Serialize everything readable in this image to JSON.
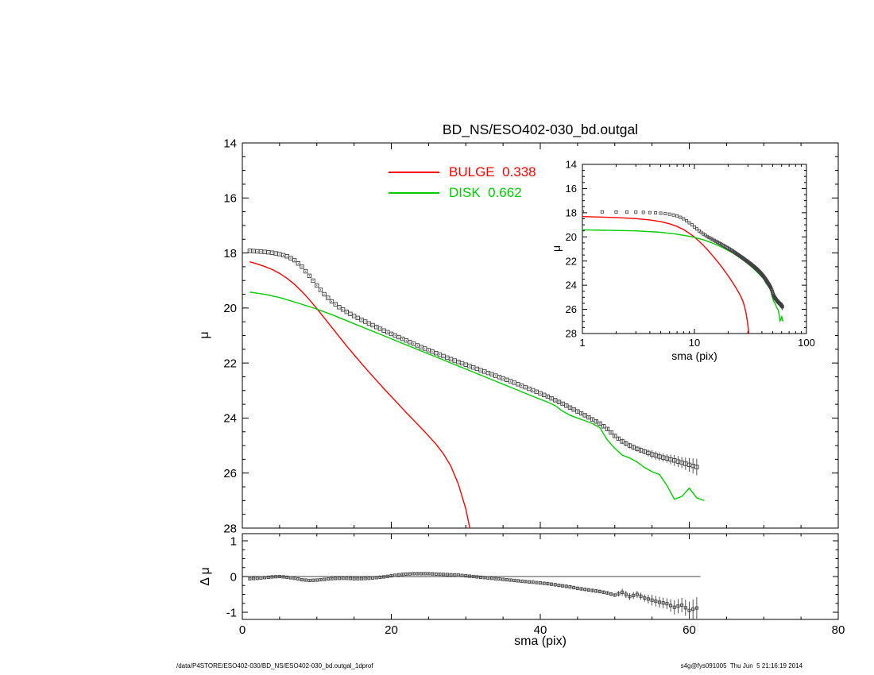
{
  "footer": {
    "left": "/data/P4STORE/ESO402-030/BD_NS/ESO402-030_bd.outgal_1dprof",
    "right": "s4g@fys091005  Thu Jun  5 21:16:19 2014"
  },
  "chart_data": [
    {
      "id": "main",
      "name": "main-profile-plot",
      "type": "line",
      "title": "BD_NS/ESO402-030_bd.outgal",
      "xlabel": "",
      "ylabel": "μ",
      "xscale": "linear",
      "xlim": [
        0,
        80
      ],
      "ylim": [
        14,
        28
      ],
      "y_inverted": true,
      "grid": false,
      "xticks": [
        0,
        20,
        40,
        60,
        80
      ],
      "yticks": [
        14,
        16,
        18,
        20,
        22,
        24,
        26,
        28
      ],
      "show_x_tick_labels": false,
      "legend_position": "top-center",
      "series": [
        {
          "name": "observed",
          "type": "scatter",
          "marker": "open-square",
          "color": "#3f3f3f",
          "x": [
            1,
            2,
            3,
            4,
            5,
            6,
            7,
            8,
            9,
            10,
            11,
            12,
            13,
            14,
            15,
            16,
            17,
            18,
            19,
            20,
            21,
            22,
            23,
            24,
            25,
            26,
            27,
            28,
            29,
            30,
            31,
            32,
            33,
            34,
            35,
            36,
            37,
            38,
            39,
            40,
            41,
            42,
            43,
            44,
            45,
            46,
            47,
            48,
            49,
            50,
            51,
            52,
            53,
            54,
            55,
            56,
            57,
            58,
            59,
            60,
            61
          ],
          "y": [
            17.92,
            17.94,
            17.96,
            17.99,
            18.04,
            18.12,
            18.26,
            18.5,
            18.83,
            19.18,
            19.5,
            19.76,
            19.97,
            20.14,
            20.29,
            20.43,
            20.56,
            20.69,
            20.82,
            20.94,
            21.06,
            21.18,
            21.3,
            21.42,
            21.53,
            21.64,
            21.75,
            21.86,
            21.96,
            22.06,
            22.16,
            22.26,
            22.36,
            22.46,
            22.56,
            22.66,
            22.77,
            22.88,
            22.99,
            23.1,
            23.22,
            23.35,
            23.48,
            23.62,
            23.76,
            23.9,
            24.05,
            24.2,
            24.4,
            24.65,
            24.85,
            25.0,
            25.12,
            25.22,
            25.32,
            25.4,
            25.47,
            25.54,
            25.62,
            25.7,
            25.78
          ],
          "yerr": [
            0.02,
            0.02,
            0.02,
            0.02,
            0.02,
            0.02,
            0.02,
            0.02,
            0.02,
            0.02,
            0.02,
            0.02,
            0.02,
            0.02,
            0.02,
            0.02,
            0.02,
            0.02,
            0.02,
            0.02,
            0.02,
            0.02,
            0.02,
            0.02,
            0.02,
            0.02,
            0.02,
            0.02,
            0.02,
            0.02,
            0.02,
            0.02,
            0.02,
            0.02,
            0.02,
            0.02,
            0.02,
            0.02,
            0.02,
            0.02,
            0.05,
            0.05,
            0.05,
            0.05,
            0.05,
            0.05,
            0.05,
            0.05,
            0.05,
            0.05,
            0.1,
            0.1,
            0.1,
            0.1,
            0.15,
            0.15,
            0.15,
            0.2,
            0.2,
            0.25,
            0.3
          ]
        },
        {
          "name": "bulge",
          "type": "line",
          "label": "BULGE  0.338",
          "fraction": 0.338,
          "color": "#ff0000",
          "x": [
            1,
            2,
            3,
            4,
            5,
            6,
            7,
            8,
            9,
            10,
            11,
            12,
            13,
            14,
            15,
            16,
            17,
            18,
            19,
            20,
            21,
            22,
            23,
            24,
            25,
            26,
            27,
            28,
            29,
            30,
            31
          ],
          "y": [
            18.32,
            18.4,
            18.49,
            18.6,
            18.74,
            18.92,
            19.14,
            19.4,
            19.7,
            20.02,
            20.36,
            20.7,
            21.04,
            21.38,
            21.7,
            22.02,
            22.33,
            22.63,
            22.93,
            23.22,
            23.51,
            23.8,
            24.08,
            24.36,
            24.65,
            24.95,
            25.3,
            25.75,
            26.4,
            27.3,
            28.6
          ]
        },
        {
          "name": "disk",
          "type": "line",
          "label": "DISK  0.662",
          "fraction": 0.662,
          "color": "#00cc00",
          "x": [
            1,
            3,
            5,
            7,
            9,
            10,
            12,
            14,
            16,
            18,
            20,
            22,
            24,
            26,
            28,
            30,
            32,
            34,
            36,
            38,
            40,
            41,
            42,
            43,
            44,
            45,
            46,
            47,
            48,
            49,
            50,
            51,
            52,
            53,
            54,
            55,
            56,
            57,
            58,
            59,
            60,
            61,
            62
          ],
          "y": [
            19.42,
            19.5,
            19.62,
            19.78,
            19.95,
            20.04,
            20.24,
            20.46,
            20.68,
            20.9,
            21.12,
            21.34,
            21.56,
            21.78,
            22.0,
            22.22,
            22.44,
            22.66,
            22.88,
            23.1,
            23.32,
            23.42,
            23.55,
            23.75,
            23.9,
            24.0,
            24.1,
            24.2,
            24.35,
            24.8,
            25.1,
            25.35,
            25.45,
            25.6,
            25.8,
            25.95,
            26.05,
            26.45,
            26.95,
            26.85,
            26.55,
            26.9,
            27.0
          ]
        }
      ]
    },
    {
      "id": "inset",
      "name": "inset-log-plot",
      "type": "line",
      "title": "",
      "xlabel": "sma (pix)",
      "ylabel": "μ",
      "xscale": "log",
      "xlim": [
        1,
        100
      ],
      "ylim": [
        14,
        28
      ],
      "y_inverted": true,
      "grid": false,
      "xticks": [
        1,
        10,
        100
      ],
      "yticks": [
        14,
        16,
        18,
        20,
        22,
        24,
        26,
        28
      ],
      "show_x_tick_labels": true,
      "note": "same observed, bulge and disk data as main plot, logarithmic sma axis",
      "series": [
        {
          "ref": "observed"
        },
        {
          "ref": "bulge"
        },
        {
          "ref": "disk"
        }
      ]
    },
    {
      "id": "residual",
      "name": "residual-plot",
      "type": "line",
      "title": "",
      "xlabel": "sma (pix)",
      "ylabel": "Δ μ",
      "xscale": "linear",
      "xlim": [
        0,
        80
      ],
      "ylim": [
        -1.2,
        1.2
      ],
      "y_inverted": false,
      "grid": false,
      "xticks": [
        0,
        20,
        40,
        60,
        80
      ],
      "yticks": [
        1,
        0,
        -1
      ],
      "show_x_tick_labels": true,
      "series": [
        {
          "name": "zero-line",
          "type": "line",
          "color": "#000000",
          "width": 0.8,
          "x": [
            0,
            61.5
          ],
          "y": [
            0,
            0
          ]
        },
        {
          "name": "residual",
          "type": "scatter",
          "marker": "open-square",
          "color": "#3f3f3f",
          "x": [
            1,
            2,
            3,
            4,
            5,
            6,
            7,
            8,
            9,
            10,
            11,
            12,
            13,
            14,
            15,
            16,
            17,
            18,
            19,
            20,
            21,
            22,
            23,
            24,
            25,
            26,
            27,
            28,
            29,
            30,
            31,
            32,
            33,
            34,
            35,
            36,
            37,
            38,
            39,
            40,
            41,
            42,
            43,
            44,
            45,
            46,
            47,
            48,
            49,
            50,
            51,
            52,
            53,
            54,
            55,
            56,
            57,
            58,
            59,
            60,
            61
          ],
          "y": [
            -0.06,
            -0.05,
            -0.03,
            -0.01,
            0.0,
            -0.02,
            -0.05,
            -0.09,
            -0.11,
            -0.1,
            -0.08,
            -0.06,
            -0.05,
            -0.05,
            -0.06,
            -0.06,
            -0.05,
            -0.03,
            -0.01,
            0.02,
            0.05,
            0.07,
            0.08,
            0.08,
            0.08,
            0.07,
            0.06,
            0.05,
            0.04,
            0.02,
            0.0,
            -0.02,
            -0.04,
            -0.06,
            -0.08,
            -0.1,
            -0.12,
            -0.14,
            -0.16,
            -0.18,
            -0.2,
            -0.23,
            -0.26,
            -0.29,
            -0.33,
            -0.36,
            -0.39,
            -0.42,
            -0.46,
            -0.52,
            -0.44,
            -0.56,
            -0.5,
            -0.6,
            -0.66,
            -0.72,
            -0.76,
            -0.86,
            -0.8,
            -0.95,
            -0.88
          ],
          "yerr": [
            0.02,
            0.02,
            0.02,
            0.02,
            0.02,
            0.02,
            0.02,
            0.02,
            0.02,
            0.02,
            0.02,
            0.02,
            0.02,
            0.02,
            0.02,
            0.02,
            0.02,
            0.02,
            0.02,
            0.02,
            0.02,
            0.02,
            0.02,
            0.02,
            0.02,
            0.02,
            0.02,
            0.02,
            0.02,
            0.02,
            0.02,
            0.02,
            0.02,
            0.02,
            0.02,
            0.02,
            0.02,
            0.02,
            0.02,
            0.02,
            0.05,
            0.05,
            0.05,
            0.05,
            0.05,
            0.05,
            0.05,
            0.05,
            0.05,
            0.05,
            0.1,
            0.1,
            0.1,
            0.1,
            0.15,
            0.15,
            0.15,
            0.2,
            0.2,
            0.25,
            0.3
          ]
        }
      ]
    }
  ]
}
